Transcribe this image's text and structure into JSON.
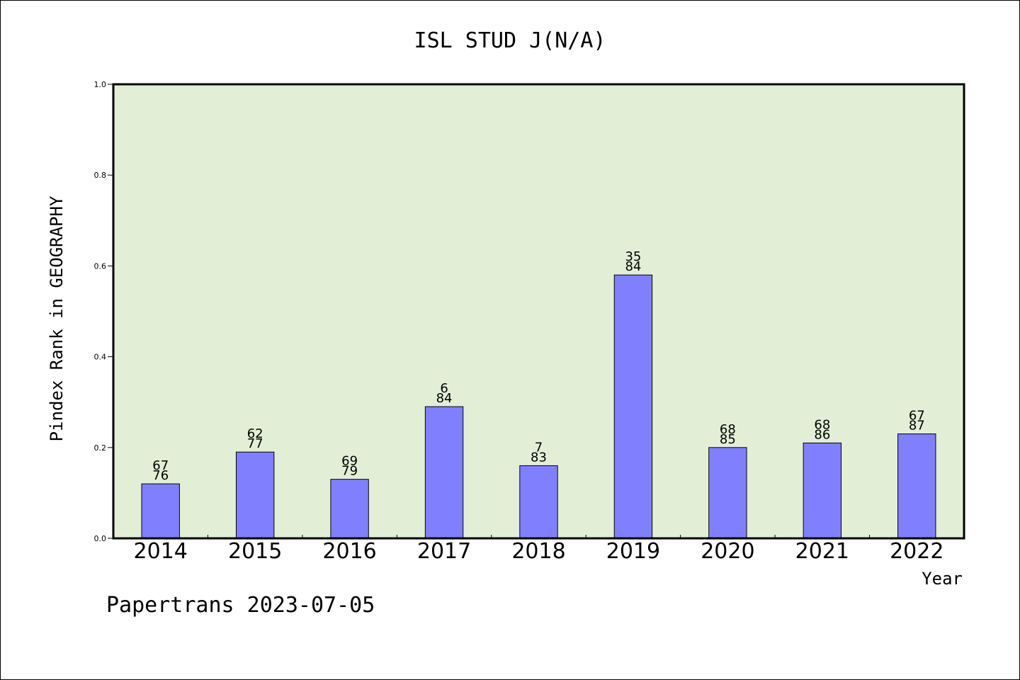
{
  "chart_data": {
    "type": "bar",
    "title": "ISL STUD J(N/A)",
    "xlabel": "Year",
    "ylabel": "Pindex Rank in GEOGRAPHY",
    "ylim": [
      0.0,
      1.0
    ],
    "yticks": [
      "0.0",
      "0.2",
      "0.4",
      "0.6",
      "0.8",
      "1.0"
    ],
    "categories": [
      "2014",
      "2015",
      "2016",
      "2017",
      "2018",
      "2019",
      "2020",
      "2021",
      "2022"
    ],
    "values": [
      0.12,
      0.19,
      0.13,
      0.29,
      0.16,
      0.58,
      0.2,
      0.21,
      0.23
    ],
    "label_top": [
      "67",
      "62",
      "69",
      "6",
      "7",
      "35",
      "68",
      "68",
      "67"
    ],
    "label_bottom": [
      "76",
      "77",
      "79",
      "84",
      "83",
      "84",
      "85",
      "86",
      "87"
    ],
    "grid": false,
    "colors": {
      "bar_fill": "#8080ff",
      "plot_background": "#e2efd6",
      "axis": "#000000"
    }
  },
  "footer": {
    "note": "Papertrans 2023-07-05"
  }
}
